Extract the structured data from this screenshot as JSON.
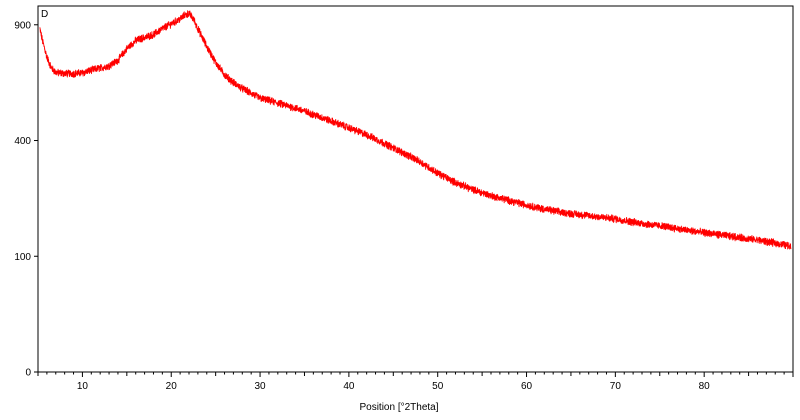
{
  "chart_data": {
    "type": "line",
    "panel_label": "D",
    "xlabel": "Position [°2Theta]",
    "ylabel": "",
    "xlim": [
      5,
      90
    ],
    "ylim": [
      0,
      1000
    ],
    "y_scale": "sqrt",
    "x_ticks": [
      10,
      20,
      30,
      40,
      50,
      60,
      70,
      80
    ],
    "y_ticks": [
      0,
      100,
      400,
      900
    ],
    "grid": false,
    "legend": "none",
    "series_color": "#ff0000",
    "series": [
      {
        "name": "",
        "x": [
          5.2,
          5.5,
          6,
          6.5,
          7,
          8,
          9,
          10,
          11,
          12,
          13,
          14,
          15,
          16,
          17,
          18,
          19,
          20,
          21,
          21.5,
          22,
          22.5,
          23,
          24,
          25,
          26,
          27,
          28,
          29,
          30,
          32,
          34,
          36,
          38,
          40,
          42,
          44,
          46,
          48,
          50,
          52,
          54,
          56,
          58,
          60,
          62,
          64,
          66,
          68,
          70,
          72,
          74,
          76,
          78,
          80,
          82,
          84,
          86,
          88,
          89.8
        ],
        "y": [
          880,
          820,
          740,
          690,
          670,
          665,
          665,
          668,
          680,
          690,
          700,
          725,
          780,
          820,
          835,
          850,
          880,
          905,
          930,
          950,
          960,
          930,
          880,
          790,
          715,
          660,
          625,
          600,
          580,
          560,
          540,
          520,
          495,
          470,
          445,
          420,
          390,
          360,
          330,
          295,
          268,
          248,
          232,
          220,
          208,
          198,
          190,
          185,
          180,
          175,
          168,
          162,
          157,
          150,
          145,
          140,
          135,
          130,
          124,
          118
        ]
      }
    ]
  }
}
